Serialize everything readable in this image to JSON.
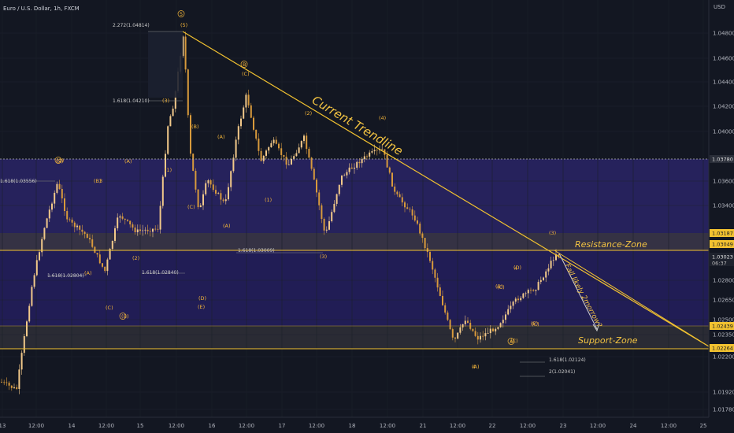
{
  "header": {
    "title": "Euro / U.S. Dollar, 1h, FXCM"
  },
  "chart_data": {
    "type": "candlestick",
    "currency": "USD",
    "ylim": [
      1.017,
      1.05
    ],
    "y_ticks": [
      "1.04800",
      "1.04600",
      "1.04400",
      "1.04200",
      "1.04000",
      "1.03600",
      "1.03400",
      "1.02800",
      "1.02650",
      "1.02500",
      "1.02350",
      "1.02200",
      "1.01920",
      "1.01780"
    ],
    "x_ticks": [
      "13",
      "12:00",
      "14",
      "12:00",
      "15",
      "12:00",
      "16",
      "12:00",
      "17",
      "12:00",
      "18",
      "12:00",
      "21",
      "12:00",
      "22",
      "12:00",
      "23",
      "12:00",
      "24",
      "12:00",
      "25"
    ],
    "price_tags": [
      {
        "text": "1.03780",
        "value": 1.0378,
        "style": "dark"
      },
      {
        "text": "1.03187",
        "value": 1.03187,
        "style": "gold"
      },
      {
        "text": "1.03049",
        "value": 1.03049,
        "style": "gold"
      },
      {
        "text": "1.03023",
        "value": 1.03023,
        "style": "current",
        "sub": "06:37"
      },
      {
        "text": "1.02439",
        "value": 1.02439,
        "style": "gold"
      },
      {
        "text": "1.02264",
        "value": 1.02264,
        "style": "gold"
      }
    ],
    "zones": [
      {
        "name": "Resistance-Zone",
        "from": 1.03049,
        "to": 1.03187
      },
      {
        "name": "Support-Zone",
        "from": 1.02264,
        "to": 1.02439
      }
    ],
    "trendline_label": "Current Trendline",
    "forecast_label": "Fall likely 2morrow?",
    "fib_labels": [
      "2.272(1.04814)",
      "1.618(1.04210)",
      "1.618(1.03556)",
      "1.618(1.02804)",
      "1.618(1.02840)",
      "1.618(1.03009)",
      "1.618(1.02124)",
      "2(1.02041)"
    ],
    "wave_labels": [
      "5",
      "(5)",
      "(3)",
      "(B)",
      "(A)",
      "(C)",
      "B",
      "(C)",
      "(2)",
      "(4)",
      "(1)",
      "(2)",
      "(3)",
      "(A)",
      "(B)",
      "(C)",
      "(D)",
      "(E)",
      "(A)",
      "(B)",
      "(1)",
      "(2)",
      "(A)",
      "(C)",
      "4",
      "(C)",
      "A",
      "(3)",
      "4",
      "3",
      "(5)",
      "(A)",
      "(B)",
      "(C)",
      "(D)",
      "(E)"
    ]
  }
}
